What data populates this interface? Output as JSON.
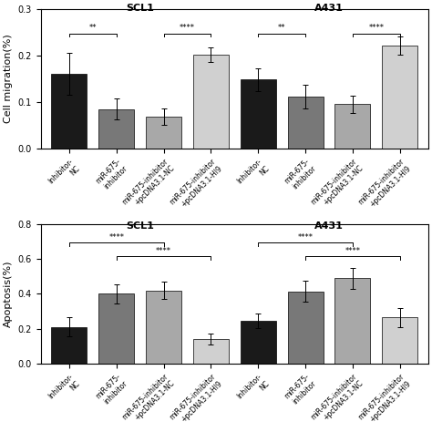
{
  "chart_data": [
    {
      "type": "bar",
      "ylabel": "Cell migration(%)",
      "categories": [
        "Inhibitor-\nNC",
        "miR-675-\ninhibitor",
        "miR-675-inhibitor\n+pcDNA3.1-NC",
        "miR-675-inhibitor\n+pcDNA3.1-HI9",
        "Inhibitor-\nNC",
        "miR-675-\ninhibitor",
        "miR-675-inhibitor\n+pcDNA3.1-NC",
        "miR-675-inhibitor\n+pcDNA3.1-HI9"
      ],
      "values": [
        0.16,
        0.085,
        0.068,
        0.202,
        0.148,
        0.112,
        0.095,
        0.222
      ],
      "errors": [
        0.045,
        0.022,
        0.018,
        0.015,
        0.025,
        0.025,
        0.018,
        0.02
      ],
      "colors": [
        "#1a1a1a",
        "#787878",
        "#a8a8a8",
        "#d0d0d0",
        "#1a1a1a",
        "#787878",
        "#a8a8a8",
        "#d0d0d0"
      ],
      "ylim": [
        0.0,
        0.3
      ],
      "yticks": [
        0.0,
        0.1,
        0.2,
        0.3
      ],
      "grid": false,
      "annotations": [
        {
          "text": "SCL1",
          "from": 0,
          "to": 3,
          "y": 0.292,
          "bracket": false
        },
        {
          "text": "A431",
          "from": 4,
          "to": 7,
          "y": 0.292,
          "bracket": false
        },
        {
          "text": "**",
          "from": 0,
          "to": 1,
          "y": 0.248,
          "bracket": true
        },
        {
          "text": "****",
          "from": 2,
          "to": 3,
          "y": 0.248,
          "bracket": true
        },
        {
          "text": "**",
          "from": 4,
          "to": 5,
          "y": 0.248,
          "bracket": true
        },
        {
          "text": "****",
          "from": 6,
          "to": 7,
          "y": 0.248,
          "bracket": true
        }
      ]
    },
    {
      "type": "bar",
      "ylabel": "Apoptosis(%)",
      "categories": [
        "Inhibitor-\nNC",
        "miR-675-\ninhibitor",
        "miR-675-inhibitor\n+pcDNA3.1-NC",
        "miR-675-inhibitor\n+pcDNA3.1-HI9",
        "Inhibitor-\nNC",
        "miR-675-\ninhibitor",
        "miR-675-inhibitor\n+pcDNA3.1-NC",
        "miR-675-inhibitor\n+pcDNA3.1-HI9"
      ],
      "values": [
        0.21,
        0.4,
        0.42,
        0.14,
        0.245,
        0.415,
        0.49,
        0.265
      ],
      "errors": [
        0.055,
        0.055,
        0.05,
        0.03,
        0.04,
        0.06,
        0.06,
        0.055
      ],
      "colors": [
        "#1a1a1a",
        "#787878",
        "#a8a8a8",
        "#d0d0d0",
        "#1a1a1a",
        "#787878",
        "#a8a8a8",
        "#d0d0d0"
      ],
      "ylim": [
        0.0,
        0.8
      ],
      "yticks": [
        0.0,
        0.2,
        0.4,
        0.6,
        0.8
      ],
      "grid": false,
      "annotations": [
        {
          "text": "SCL1",
          "from": 0,
          "to": 3,
          "y": 0.765,
          "bracket": false
        },
        {
          "text": "A431",
          "from": 4,
          "to": 7,
          "y": 0.765,
          "bracket": false
        },
        {
          "text": "****",
          "from": 0,
          "to": 2,
          "y": 0.695,
          "bracket": true
        },
        {
          "text": "****",
          "from": 1,
          "to": 3,
          "y": 0.615,
          "bracket": true
        },
        {
          "text": "****",
          "from": 4,
          "to": 6,
          "y": 0.695,
          "bracket": true
        },
        {
          "text": "****",
          "from": 5,
          "to": 7,
          "y": 0.615,
          "bracket": true
        }
      ]
    }
  ]
}
